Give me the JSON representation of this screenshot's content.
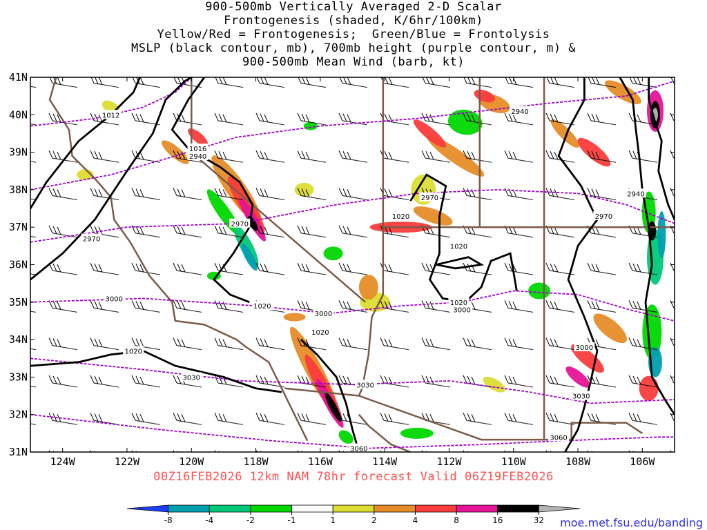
{
  "title_lines": [
    "900-500mb Vertically Averaged 2-D Scalar",
    "Frontogenesis (shaded, K/6hr/100km)",
    "Yellow/Red = Frontogenesis;  Green/Blue = Frontolysis",
    "MSLP (black contour, mb), 700mb height (purple contour, m) &",
    "900-500mb Mean Wind (barb, kt)"
  ],
  "valid_text": "00Z16FEB2026 12km NAM 78hr forecast Valid 06Z19FEB2026",
  "credit": "moe.met.fsu.edu/banding",
  "axes": {
    "lat_labels": [
      "41N",
      "40N",
      "39N",
      "38N",
      "37N",
      "36N",
      "35N",
      "34N",
      "33N",
      "32N",
      "31N"
    ],
    "lon_labels": [
      "124W",
      "122W",
      "120W",
      "118W",
      "116W",
      "114W",
      "112W",
      "110W",
      "108W",
      "106W"
    ],
    "lat_range": [
      31,
      41
    ],
    "lon_range": [
      -125,
      -105
    ]
  },
  "colorbar": {
    "labels": [
      "-8",
      "-4",
      "-2",
      "-1",
      "1",
      "2",
      "4",
      "8",
      "16",
      "32"
    ],
    "colors": [
      "#1e3cff",
      "#00a0b0",
      "#00c878",
      "#00d800",
      "#ffffff",
      "#dcdc32",
      "#e68c28",
      "#fa3c3c",
      "#e61496",
      "#000000",
      "#b4b4b4"
    ]
  },
  "contour_colors": {
    "mslp": "#000000",
    "height_700": "#a000c8",
    "borders": "#7b5a48"
  },
  "mslp_labels": [
    {
      "text": "1012",
      "lat": 40.0,
      "lon": -122.5
    },
    {
      "text": "1016",
      "lat": 39.1,
      "lon": -119.8
    },
    {
      "text": "1020",
      "lat": 37.3,
      "lon": -113.5
    },
    {
      "text": "1020",
      "lat": 36.5,
      "lon": -111.7
    },
    {
      "text": "1020",
      "lat": 35.0,
      "lon": -111.7
    },
    {
      "text": "1020",
      "lat": 34.9,
      "lon": -117.8
    },
    {
      "text": "1020",
      "lat": 34.2,
      "lon": -116.0
    },
    {
      "text": "1020",
      "lat": 33.7,
      "lon": -121.8
    }
  ],
  "height_labels": [
    {
      "text": "2940",
      "lat": 38.9,
      "lon": -119.8
    },
    {
      "text": "2940",
      "lat": 40.1,
      "lon": -109.8
    },
    {
      "text": "2940",
      "lat": 37.9,
      "lon": -106.2
    },
    {
      "text": "2970",
      "lat": 36.7,
      "lon": -123.1
    },
    {
      "text": "2970",
      "lat": 37.1,
      "lon": -118.5
    },
    {
      "text": "2970",
      "lat": 37.8,
      "lon": -112.6
    },
    {
      "text": "2970",
      "lat": 37.3,
      "lon": -107.2
    },
    {
      "text": "3000",
      "lat": 35.1,
      "lon": -122.4
    },
    {
      "text": "3000",
      "lat": 34.7,
      "lon": -115.9
    },
    {
      "text": "3000",
      "lat": 34.8,
      "lon": -111.6
    },
    {
      "text": "3000",
      "lat": 33.8,
      "lon": -107.8
    },
    {
      "text": "3030",
      "lat": 33.0,
      "lon": -120.0
    },
    {
      "text": "3030",
      "lat": 32.8,
      "lon": -114.6
    },
    {
      "text": "3030",
      "lat": 32.5,
      "lon": -107.9
    },
    {
      "text": "3060",
      "lat": 31.4,
      "lon": -108.6
    },
    {
      "text": "3060",
      "lat": 31.1,
      "lon": -114.8
    }
  ]
}
